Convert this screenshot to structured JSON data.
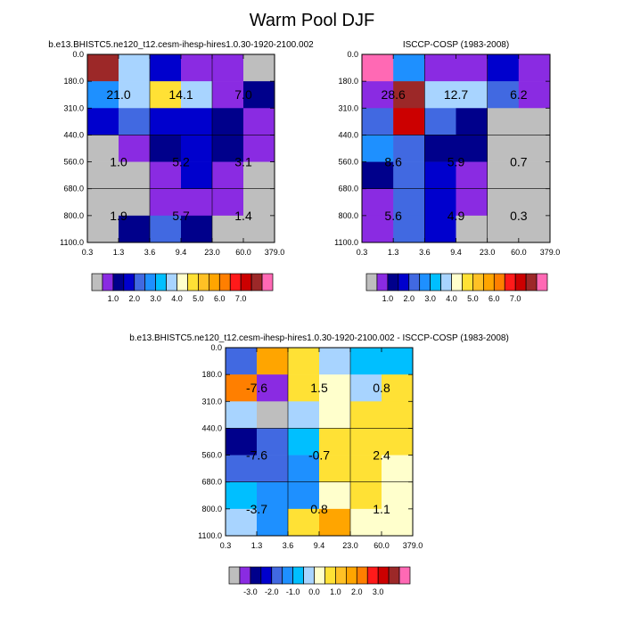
{
  "title": "Warm Pool DJF",
  "colors": {
    "gray": "#bebebe",
    "violet": "#8a2be2",
    "navy": "#00008b",
    "blue": "#0000cd",
    "royal": "#4169e1",
    "dodger": "#1e90ff",
    "deepsky": "#00bfff",
    "lightblue": "#a8d4ff",
    "cream": "#ffffcc",
    "yellow": "#ffe135",
    "gold": "#ffc125",
    "orange": "#ffa500",
    "darkorange": "#ff7f00",
    "red": "#ff1a1a",
    "crimson": "#cc0000",
    "brown": "#9c2828",
    "pink": "#ff69b4"
  },
  "chart_data": [
    {
      "type": "heatmap",
      "title": "b.e13.BHISTC5.ne120_t12.cesm-ihesp-hires1.0.30-1920-2100.002",
      "x_ticks": [
        "0.3",
        "1.3",
        "3.6",
        "9.4",
        "23.0",
        "60.0",
        "379.0"
      ],
      "y_ticks": [
        "0.0",
        "180.0",
        "310.0",
        "440.0",
        "560.0",
        "680.0",
        "800.0",
        "1100.0"
      ],
      "cells": [
        [
          "brown",
          "lightblue",
          "blue",
          "violet",
          "violet",
          "gray"
        ],
        [
          "dodger",
          "lightblue",
          "yellow",
          "lightblue",
          "violet",
          "navy"
        ],
        [
          "blue",
          "royal",
          "blue",
          "blue",
          "navy",
          "violet"
        ],
        [
          "gray",
          "violet",
          "navy",
          "blue",
          "navy",
          "violet"
        ],
        [
          "gray",
          "gray",
          "violet",
          "blue",
          "violet",
          "gray"
        ],
        [
          "gray",
          "gray",
          "violet",
          "violet",
          "violet",
          "gray"
        ],
        [
          "gray",
          "navy",
          "royal",
          "navy",
          "gray",
          "gray"
        ]
      ],
      "box_labels": [
        [
          "21.0",
          "14.1",
          "7.0"
        ],
        [
          "1.0",
          "5.2",
          "3.1"
        ],
        [
          "1.9",
          "5.7",
          "1.4"
        ]
      ],
      "colorbar": {
        "boxes": [
          "gray",
          "violet",
          "navy",
          "blue",
          "royal",
          "dodger",
          "deepsky",
          "lightblue",
          "cream",
          "yellow",
          "gold",
          "orange",
          "darkorange",
          "red",
          "crimson",
          "brown",
          "pink"
        ],
        "tick_labels": [
          "1.0",
          "2.0",
          "3.0",
          "4.0",
          "5.0",
          "6.0",
          "7.0"
        ],
        "tick_after_box": [
          2,
          4,
          6,
          8,
          10,
          12,
          14
        ]
      }
    },
    {
      "type": "heatmap",
      "title": "ISCCP-COSP (1983-2008)",
      "x_ticks": [
        "0.3",
        "1.3",
        "3.6",
        "9.4",
        "23.0",
        "60.0",
        "379.0"
      ],
      "y_ticks": [
        "0.0",
        "180.0",
        "310.0",
        "440.0",
        "560.0",
        "680.0",
        "800.0",
        "1100.0"
      ],
      "cells": [
        [
          "pink",
          "dodger",
          "violet",
          "violet",
          "blue",
          "violet"
        ],
        [
          "violet",
          "brown",
          "lightblue",
          "lightblue",
          "royal",
          "violet"
        ],
        [
          "royal",
          "crimson",
          "royal",
          "navy",
          "gray",
          "gray"
        ],
        [
          "dodger",
          "royal",
          "navy",
          "navy",
          "gray",
          "gray"
        ],
        [
          "navy",
          "royal",
          "blue",
          "violet",
          "gray",
          "gray"
        ],
        [
          "violet",
          "royal",
          "blue",
          "violet",
          "gray",
          "gray"
        ],
        [
          "violet",
          "royal",
          "blue",
          "gray",
          "gray",
          "gray"
        ]
      ],
      "box_labels": [
        [
          "28.6",
          "12.7",
          "6.2"
        ],
        [
          "8.6",
          "5.9",
          "0.7"
        ],
        [
          "5.6",
          "4.9",
          "0.3"
        ]
      ],
      "colorbar": {
        "boxes": [
          "gray",
          "violet",
          "navy",
          "blue",
          "royal",
          "dodger",
          "deepsky",
          "lightblue",
          "cream",
          "yellow",
          "gold",
          "orange",
          "darkorange",
          "red",
          "crimson",
          "brown",
          "pink"
        ],
        "tick_labels": [
          "1.0",
          "2.0",
          "3.0",
          "4.0",
          "5.0",
          "6.0",
          "7.0"
        ],
        "tick_after_box": [
          2,
          4,
          6,
          8,
          10,
          12,
          14
        ]
      }
    },
    {
      "type": "heatmap",
      "title": "b.e13.BHISTC5.ne120_t12.cesm-ihesp-hires1.0.30-1920-2100.002 - ISCCP-COSP (1983-2008)",
      "x_ticks": [
        "0.3",
        "1.3",
        "3.6",
        "9.4",
        "23.0",
        "60.0",
        "379.0"
      ],
      "y_ticks": [
        "0.0",
        "180.0",
        "310.0",
        "440.0",
        "560.0",
        "680.0",
        "800.0",
        "1100.0"
      ],
      "cells": [
        [
          "royal",
          "orange",
          "yellow",
          "lightblue",
          "deepsky",
          "deepsky"
        ],
        [
          "darkorange",
          "violet",
          "yellow",
          "cream",
          "lightblue",
          "yellow"
        ],
        [
          "lightblue",
          "gray",
          "lightblue",
          "cream",
          "yellow",
          "yellow"
        ],
        [
          "navy",
          "royal",
          "deepsky",
          "yellow",
          "yellow",
          "yellow"
        ],
        [
          "royal",
          "royal",
          "dodger",
          "yellow",
          "yellow",
          "cream"
        ],
        [
          "deepsky",
          "dodger",
          "dodger",
          "cream",
          "yellow",
          "cream"
        ],
        [
          "lightblue",
          "dodger",
          "yellow",
          "orange",
          "cream",
          "cream"
        ]
      ],
      "box_labels": [
        [
          "-7.6",
          "1.5",
          "0.8"
        ],
        [
          "-7.6",
          "-0.7",
          "2.4"
        ],
        [
          "-3.7",
          "0.8",
          "1.1"
        ]
      ],
      "colorbar": {
        "boxes": [
          "gray",
          "violet",
          "navy",
          "blue",
          "royal",
          "dodger",
          "deepsky",
          "lightblue",
          "cream",
          "yellow",
          "gold",
          "orange",
          "darkorange",
          "red",
          "crimson",
          "brown",
          "pink"
        ],
        "tick_labels": [
          "-3.0",
          "-2.0",
          "-1.0",
          "0.0",
          "1.0",
          "2.0",
          "3.0"
        ],
        "tick_after_box": [
          2,
          4,
          6,
          8,
          10,
          12,
          14
        ]
      }
    }
  ]
}
